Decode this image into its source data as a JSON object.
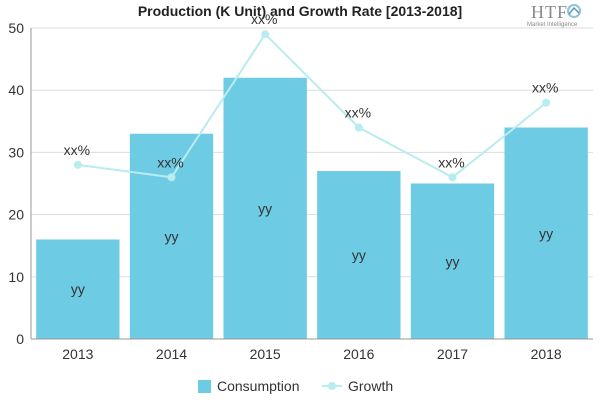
{
  "chart_data": {
    "type": "bar",
    "title": "Production (K Unit) and Growth Rate [2013-2018]",
    "categories": [
      "2013",
      "2014",
      "2015",
      "2016",
      "2017",
      "2018"
    ],
    "ylim": [
      0,
      50
    ],
    "yticks": [
      "0",
      "10",
      "20",
      "30",
      "40",
      "50"
    ],
    "grid": true,
    "legend_position": "bottom",
    "series": [
      {
        "name": "Consumption",
        "type": "bar",
        "color": "#6dcbe3",
        "values": [
          16,
          33,
          42,
          27,
          25,
          34
        ],
        "labels": [
          "yy",
          "yy",
          "yy",
          "yy",
          "yy",
          "yy"
        ]
      },
      {
        "name": "Growth",
        "type": "line",
        "color": "#b8ecee",
        "values": [
          28,
          26,
          49,
          34,
          26,
          38
        ],
        "labels": [
          "xx%",
          "xx%",
          "xx%",
          "xx%",
          "xx%",
          "xx%"
        ]
      }
    ]
  },
  "logo": {
    "text": "HTF",
    "subtitle": "Market Intelligence"
  }
}
